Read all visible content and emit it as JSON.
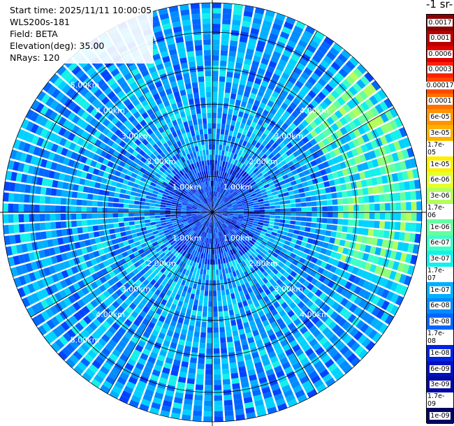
{
  "info": {
    "start_time": "Start time: 2025/11/11 10:00:05",
    "instrument": "WLS200s-181",
    "field": "Field: BETA",
    "elevation": "Elevation(deg): 35.00",
    "nrays": "NRays: 120"
  },
  "colorbar_title": "-1 sr-",
  "chart_data": {
    "type": "heatmap",
    "projection": "polar PPI",
    "field": "BETA",
    "rays": 120,
    "max_range_km": 5.0,
    "range_rings_km": [
      1.0,
      2.0,
      3.0,
      4.0,
      5.0
    ],
    "ring_labels": [
      "1.00km",
      "2.00km",
      "3.00km",
      "4.00km",
      "5.00km"
    ],
    "colorbar": {
      "scale": "log",
      "labels": [
        "0.0017",
        "0.001",
        "0.0006",
        "0.0003",
        "0.00017",
        "0.0001",
        "6e-05",
        "3e-05",
        "1.7e-05",
        "1e-05",
        "6e-06",
        "3e-06",
        "1.7e-06",
        "1e-06",
        "6e-07",
        "3e-07",
        "1.7e-07",
        "1e-07",
        "6e-08",
        "3e-08",
        "1.7e-08",
        "1e-08",
        "6e-09",
        "3e-09",
        "1.7e-09",
        "1e-09"
      ],
      "colors": [
        "#8b0000",
        "#b80000",
        "#e00000",
        "#ff2000",
        "#ff4800",
        "#ff7000",
        "#ff9400",
        "#ffb000",
        "#ffd000",
        "#ffee00",
        "#e6ff2a",
        "#b4ff5c",
        "#8eff7a",
        "#64ffa0",
        "#3cffc6",
        "#14f0ea",
        "#00d2ff",
        "#00b0ff",
        "#008cff",
        "#0066ff",
        "#0044ff",
        "#0024e0",
        "#0010c0",
        "#000aa0",
        "#000884",
        "#000660"
      ]
    },
    "highlight_sector": {
      "azimuth_from_deg": 45,
      "azimuth_to_deg": 110,
      "range_from_km": 3.6,
      "level": "1.7e-06 to 1.7e-05"
    },
    "typical_level": "3e-08 to 1.7e-07",
    "near_range_level": "1e-08 to 3e-08"
  }
}
